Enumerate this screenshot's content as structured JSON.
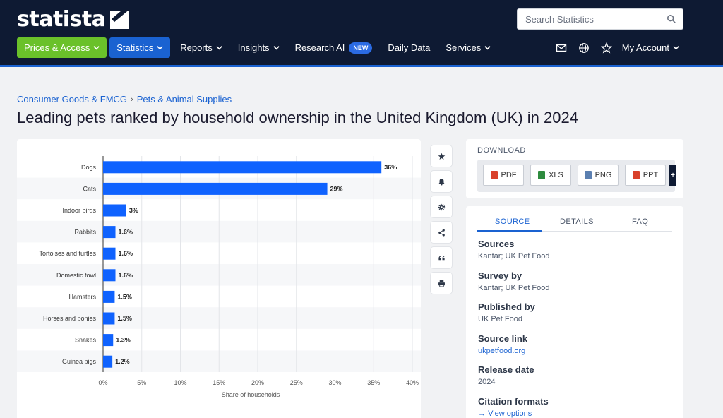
{
  "header": {
    "logo_text": "statista",
    "search_placeholder": "Search Statistics",
    "nav": [
      {
        "label": "Prices & Access"
      },
      {
        "label": "Statistics"
      },
      {
        "label": "Reports"
      },
      {
        "label": "Insights"
      },
      {
        "label": "Research AI",
        "badge": "NEW"
      },
      {
        "label": "Daily Data"
      },
      {
        "label": "Services"
      }
    ],
    "account_label": "My Account"
  },
  "breadcrumb": [
    "Consumer Goods & FMCG",
    "Pets & Animal Supplies"
  ],
  "page_title": "Leading pets ranked by household ownership in the United Kingdom (UK) in 2024",
  "chart_data": {
    "type": "bar",
    "orientation": "horizontal",
    "categories": [
      "Dogs",
      "Cats",
      "Indoor birds",
      "Rabbits",
      "Tortoises and turtles",
      "Domestic fowl",
      "Hamsters",
      "Horses and ponies",
      "Snakes",
      "Guinea pigs"
    ],
    "values": [
      36,
      29,
      3,
      1.6,
      1.6,
      1.6,
      1.5,
      1.5,
      1.3,
      1.2
    ],
    "value_labels": [
      "36%",
      "29%",
      "3%",
      "1.6%",
      "1.6%",
      "1.6%",
      "1.5%",
      "1.5%",
      "1.3%",
      "1.2%"
    ],
    "xlim": [
      0,
      40
    ],
    "x_ticks": [
      "0%",
      "5%",
      "10%",
      "15%",
      "20%",
      "25%",
      "30%",
      "35%",
      "40%"
    ],
    "xlabel": "Share of households",
    "bar_color": "#0f62fe",
    "grid": true
  },
  "download": {
    "title": "DOWNLOAD",
    "buttons": [
      {
        "label": "PDF",
        "color": "#d9412b"
      },
      {
        "label": "XLS",
        "color": "#2e8b3e"
      },
      {
        "label": "PNG",
        "color": "#5b7fb0"
      },
      {
        "label": "PPT",
        "color": "#d9412b"
      }
    ],
    "more_label": "+"
  },
  "source_panel": {
    "tabs": [
      "SOURCE",
      "DETAILS",
      "FAQ"
    ],
    "fields": [
      {
        "label": "Sources",
        "value": "Kantar; UK Pet Food"
      },
      {
        "label": "Survey by",
        "value": "Kantar; UK Pet Food"
      },
      {
        "label": "Published by",
        "value": "UK Pet Food"
      },
      {
        "label": "Source link",
        "value": "ukpetfood.org",
        "link": true
      },
      {
        "label": "Release date",
        "value": "2024"
      },
      {
        "label": "Citation formats",
        "value": "View options",
        "link": true
      }
    ]
  }
}
